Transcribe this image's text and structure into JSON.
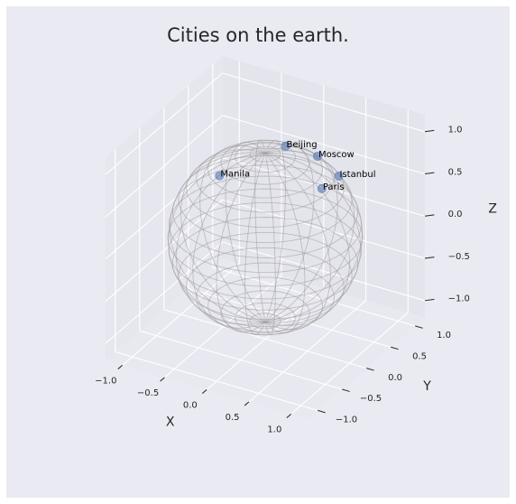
{
  "chart_data": {
    "type": "scatter",
    "projection": "3d",
    "title": "Cities on the earth.",
    "xlabel": "X",
    "ylabel": "Y",
    "zlabel": "Z",
    "xlim": [
      -1.2,
      1.2
    ],
    "ylim": [
      -1.2,
      1.2
    ],
    "zlim": [
      -1.2,
      1.2
    ],
    "x_ticks": [
      "−1.0",
      "−0.5",
      "0.0",
      "0.5",
      "1.0"
    ],
    "y_ticks": [
      "−1.0",
      "−0.5",
      "0.0",
      "0.5",
      "1.0"
    ],
    "z_ticks": [
      "−1.0",
      "−0.5",
      "0.0",
      "0.5",
      "1.0"
    ],
    "grid": true,
    "surface": "unit sphere wireframe",
    "point_color": "#4c72b0",
    "sphere_color": "#9a9a9a",
    "background_color": "#eaeaf2",
    "points": [
      {
        "label": "Paris",
        "x": 0.656,
        "y": 0.027,
        "z": 0.755
      },
      {
        "label": "Moscow",
        "x": 0.316,
        "y": 0.526,
        "z": 0.79
      },
      {
        "label": "Istanbul",
        "x": 0.576,
        "y": 0.512,
        "z": 0.637
      },
      {
        "label": "Beijing",
        "x": -0.176,
        "y": 0.722,
        "z": 0.669
      },
      {
        "label": "Manila",
        "x": -0.831,
        "y": 0.501,
        "z": 0.241
      }
    ]
  }
}
